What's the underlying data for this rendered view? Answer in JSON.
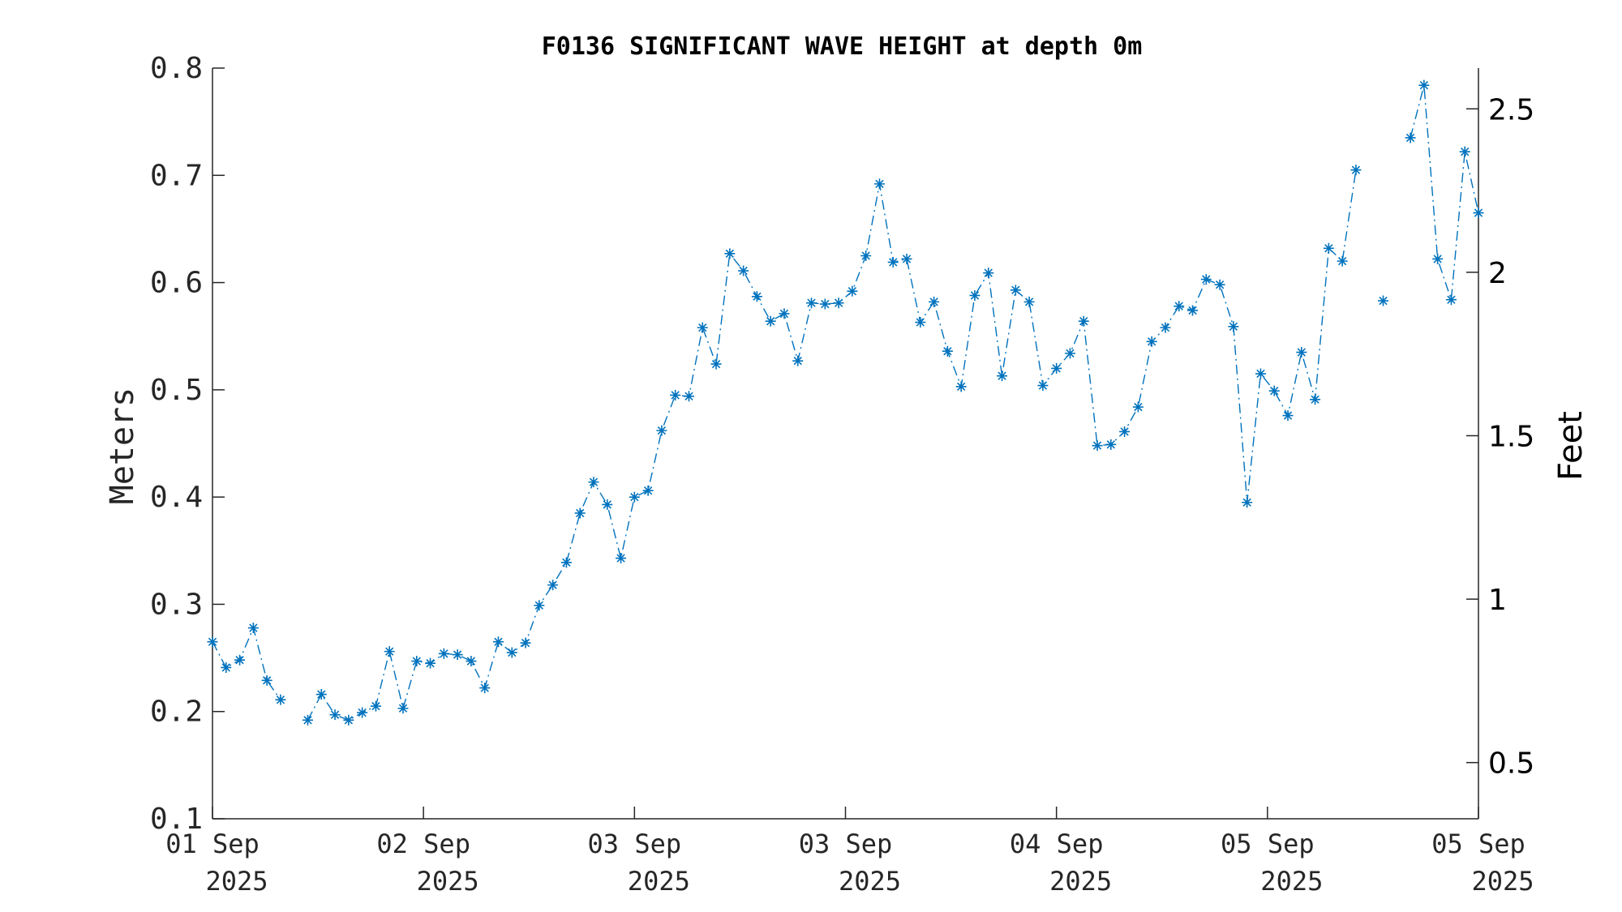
{
  "chart_data": {
    "type": "line",
    "title": "F0136 SIGNIFICANT WAVE HEIGHT at depth 0m",
    "ylabel": "Meters",
    "y2label": "Feet",
    "ylim": [
      0.1,
      0.8
    ],
    "y2lim": [
      0.328084,
      2.624672
    ],
    "yticks": [
      0.1,
      0.2,
      0.3,
      0.4,
      0.5,
      0.6,
      0.7,
      0.8
    ],
    "y2ticks": [
      0.5,
      1,
      1.5,
      2,
      2.5
    ],
    "yticklabels": [
      "0.1",
      "0.2",
      "0.3",
      "0.4",
      "0.5",
      "0.6",
      "0.7",
      "0.8"
    ],
    "y2ticklabels": [
      "0.5",
      "1",
      "1.5",
      "2",
      "2.5"
    ],
    "xticklabels": [
      [
        "01 Sep",
        "2025"
      ],
      [
        "02 Sep",
        "2025"
      ],
      [
        "03 Sep",
        "2025"
      ],
      [
        "03 Sep",
        "2025"
      ],
      [
        "04 Sep",
        "2025"
      ],
      [
        "05 Sep",
        "2025"
      ],
      [
        "05 Sep",
        "2025"
      ]
    ],
    "line_style": "dash-dot",
    "marker": "asterisk",
    "color": "#0072BD",
    "grid": false,
    "series": [
      {
        "values": [
          0.265,
          0.241,
          0.248,
          0.278,
          0.229,
          0.211,
          null,
          0.192,
          0.216,
          0.197,
          0.192,
          0.199,
          0.205,
          0.256,
          0.203,
          0.247,
          0.245,
          0.254,
          0.253,
          0.247,
          0.222,
          0.265,
          0.255,
          0.264,
          0.299,
          0.318,
          0.339,
          0.385,
          0.414,
          0.393,
          0.343,
          0.4,
          0.406,
          0.462,
          0.495,
          0.494,
          0.558,
          0.524,
          0.627,
          0.611,
          0.587,
          0.564,
          0.571,
          0.527,
          0.581,
          0.58,
          0.581,
          0.592,
          0.625,
          0.692,
          0.619,
          0.622,
          0.563,
          0.582,
          0.536,
          0.503,
          0.588,
          0.609,
          0.513,
          0.593,
          0.582,
          0.504,
          0.52,
          0.534,
          0.564,
          0.448,
          0.449,
          0.461,
          0.484,
          0.545,
          0.558,
          0.578,
          0.574,
          0.603,
          0.598,
          0.559,
          0.395,
          0.515,
          0.499,
          0.476,
          0.535,
          0.491,
          0.632,
          0.62,
          0.705,
          null,
          0.583,
          null,
          0.735,
          0.784,
          0.622,
          0.584,
          0.722,
          0.665
        ]
      }
    ]
  }
}
